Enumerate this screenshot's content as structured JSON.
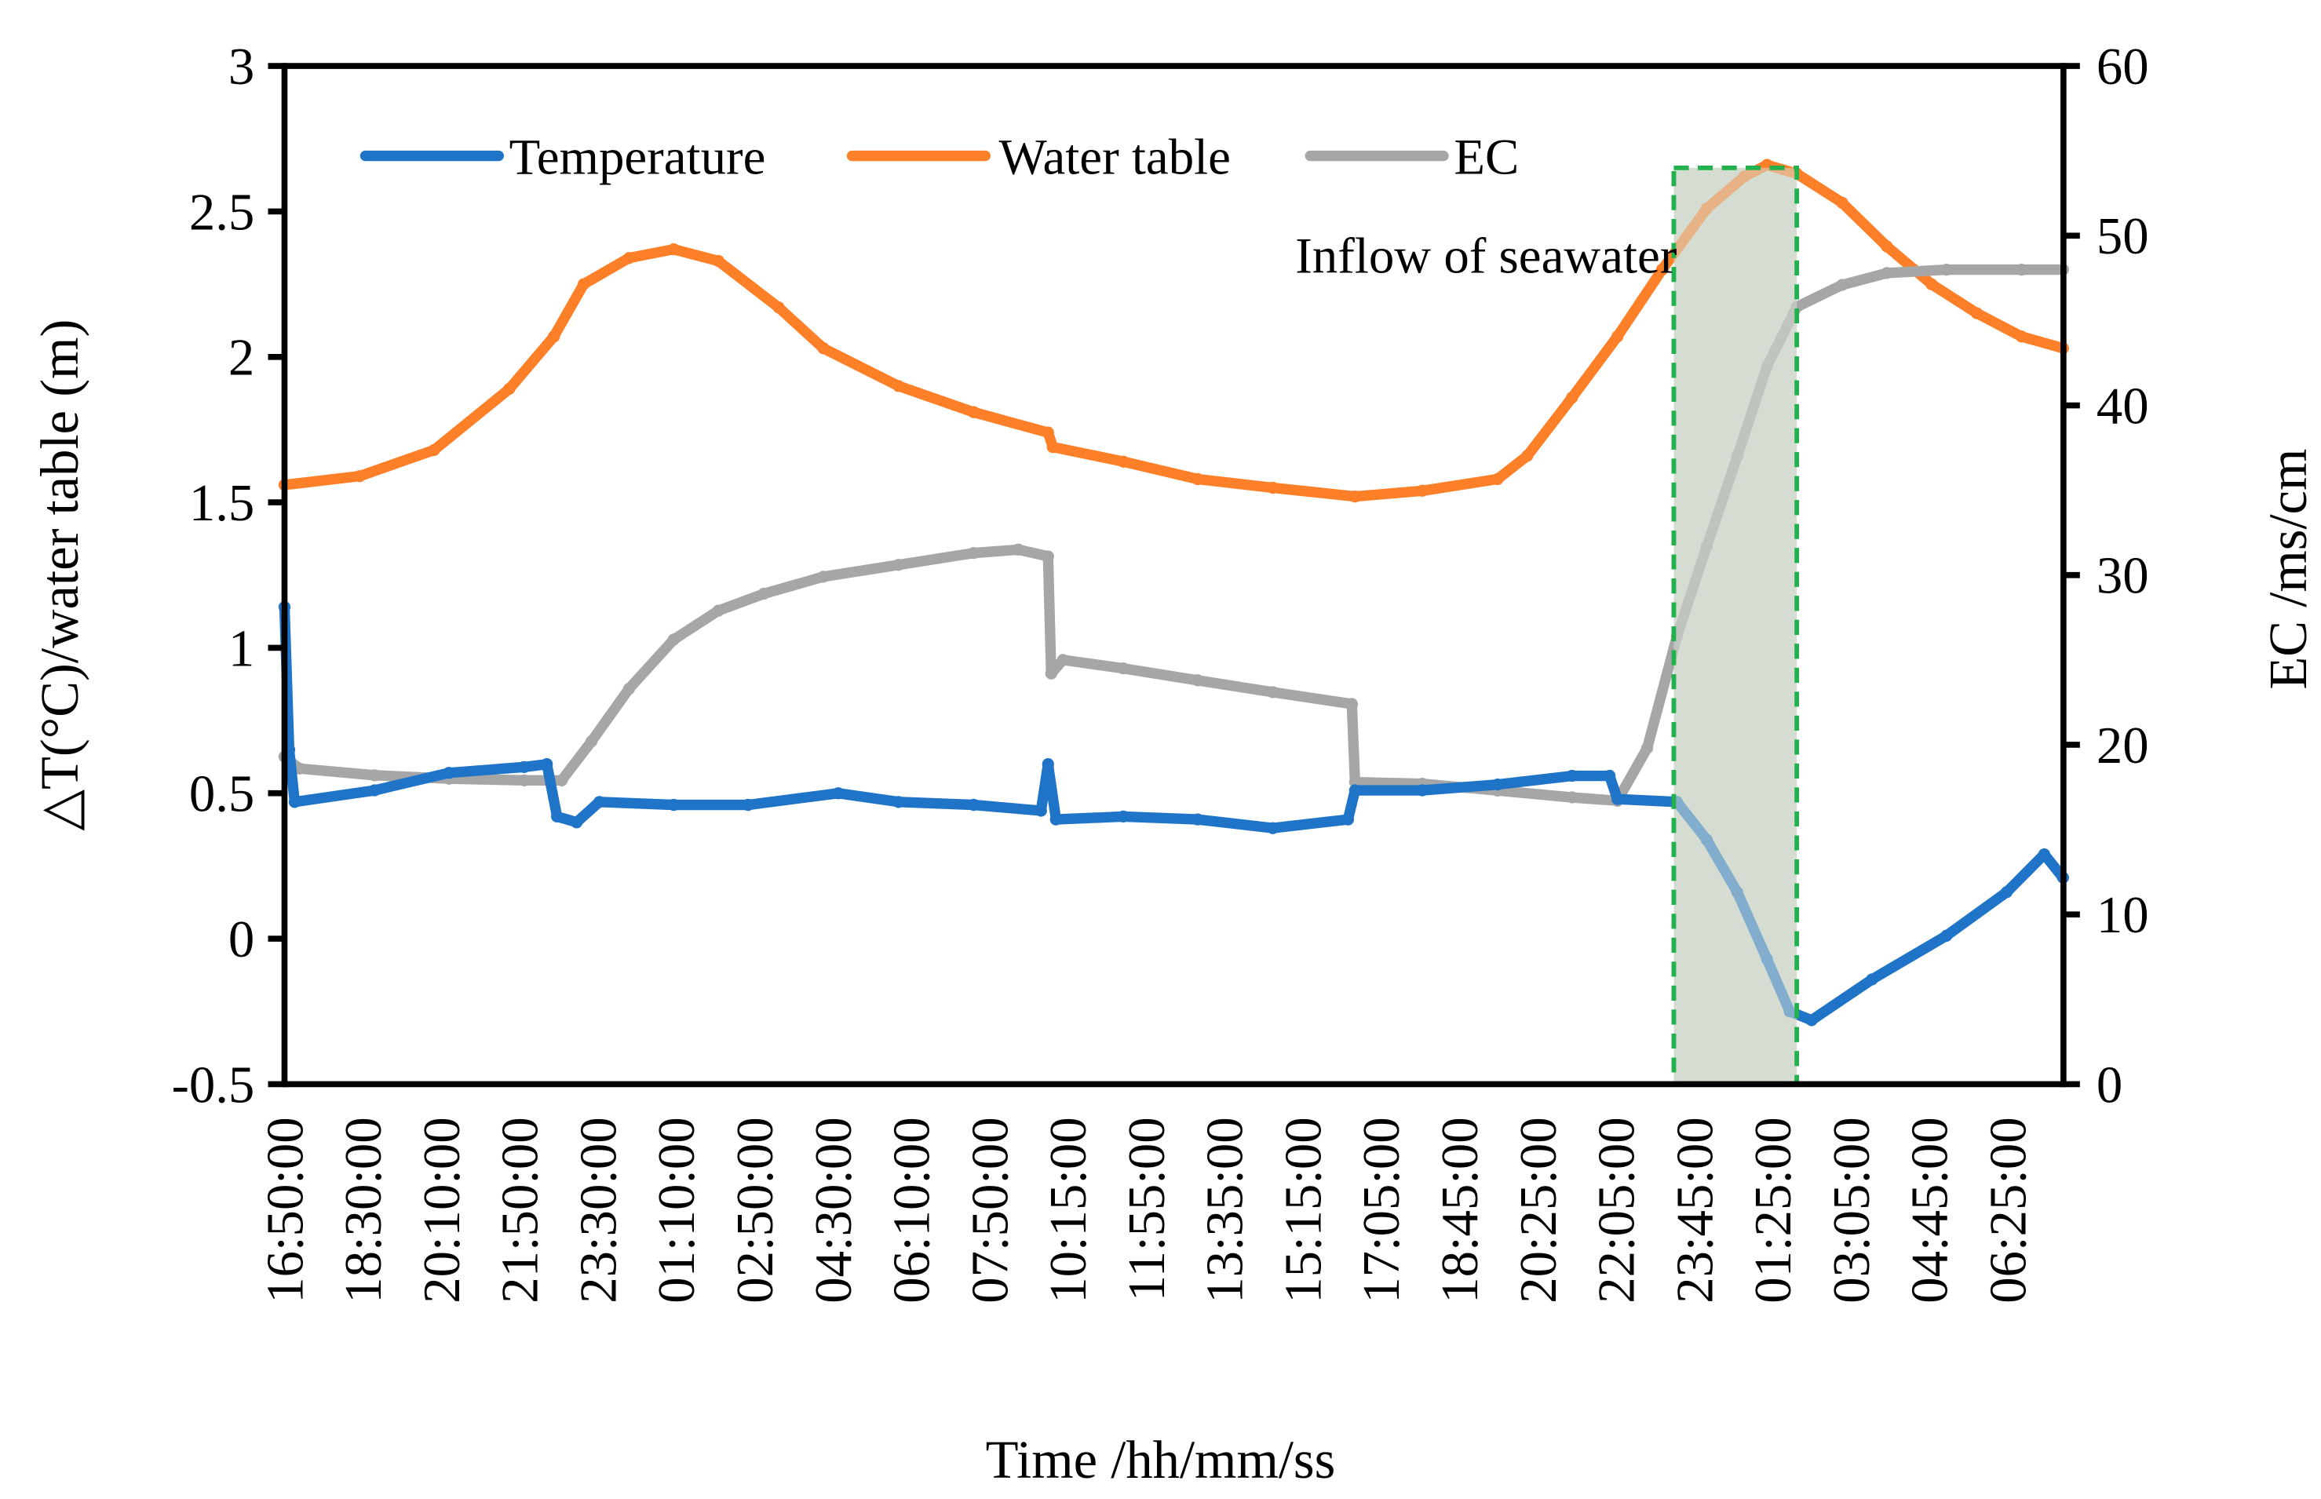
{
  "chart_data": {
    "type": "line",
    "title": "",
    "xlabel": "Time /hh/mm/ss",
    "ylabel_left": "△T(°C)/water table (m)",
    "ylabel_right": "EC /ms/cm",
    "x_tick_labels": [
      "16:50:00",
      "18:30:00",
      "20:10:00",
      "21:50:00",
      "23:30:00",
      "01:10:00",
      "02:50:00",
      "04:30:00",
      "06:10:00",
      "07:50:00",
      "10:15:00",
      "11:55:00",
      "13:35:00",
      "15:15:00",
      "17:05:00",
      "18:45:00",
      "20:25:00",
      "22:05:00",
      "23:45:00",
      "01:25:00",
      "03:05:00",
      "04:45:00",
      "06:25:00"
    ],
    "x_unit": "tick index",
    "xlim": [
      0,
      22.71
    ],
    "ylim_left": [
      -0.5,
      3
    ],
    "yticks_left": [
      "-0.5",
      "0",
      "0.5",
      "1",
      "1.5",
      "2",
      "2.5",
      "3"
    ],
    "yticks_left_values": [
      -0.5,
      0,
      0.5,
      1,
      1.5,
      2,
      2.5,
      3
    ],
    "ylim_right": [
      0,
      60
    ],
    "yticks_right": [
      "0",
      "10",
      "20",
      "30",
      "40",
      "50",
      "60"
    ],
    "yticks_right_values": [
      0,
      10,
      20,
      30,
      40,
      50,
      60
    ],
    "grid": false,
    "legend_position": "top-left",
    "series": [
      {
        "name": "Temperature",
        "axis": "left",
        "color": "#1f74c8",
        "x": [
          0,
          0.06,
          0.13,
          1.15,
          2.1,
          3.06,
          3.35,
          3.48,
          3.73,
          4.02,
          4.97,
          5.92,
          7.07,
          7.84,
          8.8,
          9.66,
          9.75,
          9.85,
          10.71,
          11.66,
          12.62,
          13.58,
          13.67,
          14.53,
          15.49,
          16.44,
          16.92,
          17.02,
          17.78,
          18.16,
          18.55,
          18.93,
          19.22,
          19.5,
          20.27,
          21.22,
          21.99,
          22.47,
          22.71
        ],
        "y": [
          1.14,
          0.65,
          0.47,
          0.51,
          0.57,
          0.59,
          0.6,
          0.42,
          0.4,
          0.47,
          0.46,
          0.46,
          0.5,
          0.47,
          0.46,
          0.44,
          0.6,
          0.41,
          0.42,
          0.41,
          0.38,
          0.41,
          0.51,
          0.51,
          0.53,
          0.56,
          0.56,
          0.48,
          0.47,
          0.34,
          0.16,
          -0.07,
          -0.25,
          -0.28,
          -0.14,
          0.01,
          0.16,
          0.29,
          0.21
        ]
      },
      {
        "name": "Water table",
        "axis": "left",
        "color": "#fd7f28",
        "x": [
          0,
          0.96,
          1.91,
          2.87,
          3.44,
          3.82,
          4.4,
          4.97,
          5.54,
          6.31,
          6.88,
          7.84,
          8.8,
          9.75,
          9.81,
          10.71,
          11.66,
          12.62,
          13.67,
          14.53,
          15.49,
          15.87,
          16.44,
          17.02,
          17.59,
          18.16,
          18.64,
          18.93,
          19.31,
          19.89,
          20.46,
          21.03,
          21.61,
          22.18,
          22.71
        ],
        "y": [
          1.56,
          1.59,
          1.68,
          1.89,
          2.07,
          2.25,
          2.34,
          2.37,
          2.33,
          2.17,
          2.03,
          1.9,
          1.81,
          1.74,
          1.69,
          1.64,
          1.58,
          1.55,
          1.52,
          1.54,
          1.58,
          1.66,
          1.86,
          2.07,
          2.3,
          2.51,
          2.62,
          2.66,
          2.63,
          2.53,
          2.38,
          2.25,
          2.15,
          2.07,
          2.03
        ]
      },
      {
        "name": "EC",
        "axis": "right",
        "color": "#a6a6a6",
        "x": [
          0,
          0.19,
          1.15,
          2.1,
          3.06,
          3.54,
          3.92,
          4.4,
          4.97,
          5.54,
          6.12,
          6.88,
          7.84,
          8.8,
          9.37,
          9.75,
          9.79,
          9.94,
          10.71,
          11.66,
          12.62,
          13.63,
          13.67,
          14.53,
          15.49,
          16.44,
          17.02,
          17.4,
          17.78,
          18.16,
          18.55,
          18.93,
          19.31,
          19.89,
          20.46,
          21.22,
          22.18,
          22.71
        ],
        "y": [
          19.3,
          18.6,
          18.2,
          18.0,
          17.9,
          17.9,
          20.2,
          23.3,
          26.2,
          27.9,
          28.9,
          29.9,
          30.6,
          31.3,
          31.5,
          31.1,
          24.2,
          25.0,
          24.5,
          23.8,
          23.1,
          22.4,
          17.8,
          17.7,
          17.3,
          16.9,
          16.7,
          19.8,
          26.4,
          31.7,
          37.0,
          42.3,
          45.8,
          47.1,
          47.8,
          48.0,
          48.0,
          48.0
        ]
      }
    ],
    "annotations": [
      {
        "text": "Inflow of seawater",
        "highlight_x_range": [
          17.74,
          19.31
        ],
        "highlight_y_range_right": [
          0,
          54
        ],
        "fill": "#d6ddd2",
        "border": "#22b14c"
      }
    ]
  }
}
